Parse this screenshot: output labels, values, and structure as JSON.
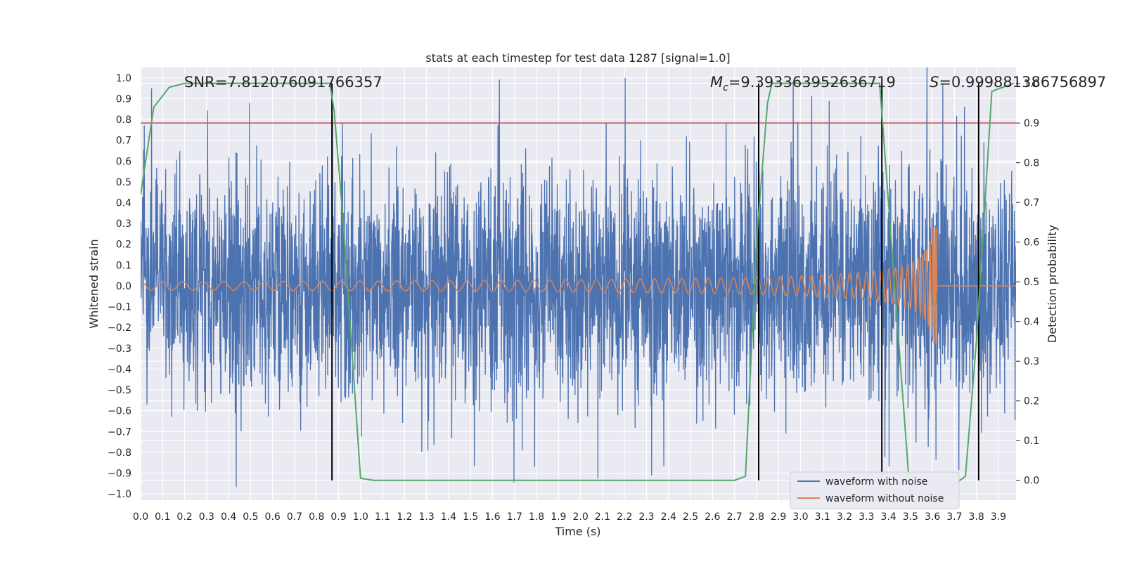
{
  "chart_data": {
    "type": "line",
    "title": "stats at each timestep for test data 1287 [signal=1.0]",
    "xlabel": "Time (s)",
    "ylabel": "Whitened strain",
    "y2label": "Detection probability",
    "xlim": [
      0.0,
      3.98
    ],
    "ylim": [
      -1.03,
      1.05
    ],
    "y2lim": [
      -0.05,
      1.04
    ],
    "x_ticks": [
      "0.0",
      "0.1",
      "0.2",
      "0.3",
      "0.4",
      "0.5",
      "0.6",
      "0.7",
      "0.8",
      "0.9",
      "1.0",
      "1.1",
      "1.2",
      "1.3",
      "1.4",
      "1.5",
      "1.6",
      "1.7",
      "1.8",
      "1.9",
      "2.0",
      "2.1",
      "2.2",
      "2.3",
      "2.4",
      "2.5",
      "2.6",
      "2.7",
      "2.8",
      "2.9",
      "3.0",
      "3.1",
      "3.2",
      "3.3",
      "3.4",
      "3.5",
      "3.6",
      "3.7",
      "3.8",
      "3.9"
    ],
    "y_ticks": [
      "1.0",
      "0.9",
      "0.8",
      "0.7",
      "0.6",
      "0.5",
      "0.4",
      "0.3",
      "0.2",
      "0.1",
      "0.0",
      "−0.1",
      "−0.2",
      "−0.3",
      "−0.4",
      "−0.5",
      "−0.6",
      "−0.7",
      "−0.8",
      "−0.9",
      "−1.0"
    ],
    "y2_ticks": [
      "1.0",
      "0.9",
      "0.8",
      "0.7",
      "0.6",
      "0.5",
      "0.4",
      "0.3",
      "0.2",
      "0.1",
      "0.0"
    ],
    "threshold": 0.9,
    "vertical_lines": [
      0.87,
      2.81,
      3.37,
      3.81
    ],
    "annotations": {
      "snr": "SNR=7.812076091766357",
      "mc_symbol": "M",
      "mc_sub": "c",
      "mc_value": "=9.393363952636719",
      "s_symbol": "S",
      "s_value": "=0.999881386756897"
    },
    "detection_probability": {
      "x": [
        0.0,
        0.06,
        0.13,
        0.2,
        0.5,
        0.86,
        0.88,
        0.92,
        1.0,
        1.06,
        1.5,
        2.0,
        2.4,
        2.7,
        2.75,
        2.8,
        2.85,
        2.87,
        3.36,
        3.4,
        3.5,
        3.6,
        3.75,
        3.8,
        3.87,
        3.97
      ],
      "y": [
        0.72,
        0.94,
        0.99,
        1.0,
        1.0,
        1.0,
        0.93,
        0.66,
        0.005,
        0.0,
        0.0,
        0.0,
        0.0,
        0.0,
        0.01,
        0.6,
        0.95,
        1.0,
        1.0,
        0.7,
        -0.05,
        -0.05,
        0.01,
        0.35,
        0.98,
        1.0
      ]
    },
    "waveform_with_noise": {
      "noise_rms": 0.27,
      "peak_max": 1.0,
      "peak_min": -0.92
    },
    "waveform_without_noise": {
      "merger_time": 3.62,
      "peak_amplitude": 0.28,
      "initial_amplitude": 0.02
    },
    "legend": {
      "placement": "lower-right",
      "entries": [
        "waveform with noise",
        "waveform without noise"
      ]
    },
    "colors": {
      "noise": "#4c72b0",
      "clean": "#dd8452",
      "probability": "#55a868",
      "threshold": "#c44e52",
      "vline": "#000000",
      "background": "#eaeaf2",
      "grid": "#ffffff"
    }
  }
}
